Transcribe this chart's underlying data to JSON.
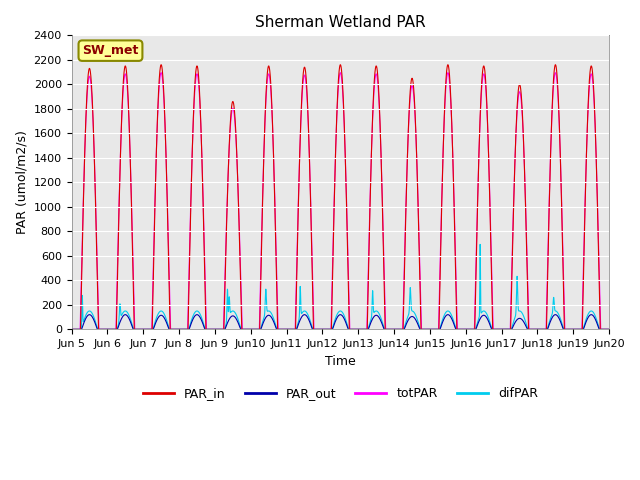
{
  "title": "Sherman Wetland PAR",
  "ylabel": "PAR (umol/m2/s)",
  "xlabel": "Time",
  "ylim": [
    0,
    2400
  ],
  "xlim_days": [
    5,
    20
  ],
  "start_day": 5,
  "end_day": 20,
  "n_days": 15,
  "colors": {
    "PAR_in": "#dd0000",
    "PAR_out": "#0000aa",
    "totPAR": "#ff00ff",
    "difPAR": "#00ccee"
  },
  "legend_label": "SW_met",
  "background_color": "#e8e8e8",
  "title_fontsize": 11,
  "axis_fontsize": 9,
  "tick_fontsize": 8,
  "legend_fontsize": 9
}
